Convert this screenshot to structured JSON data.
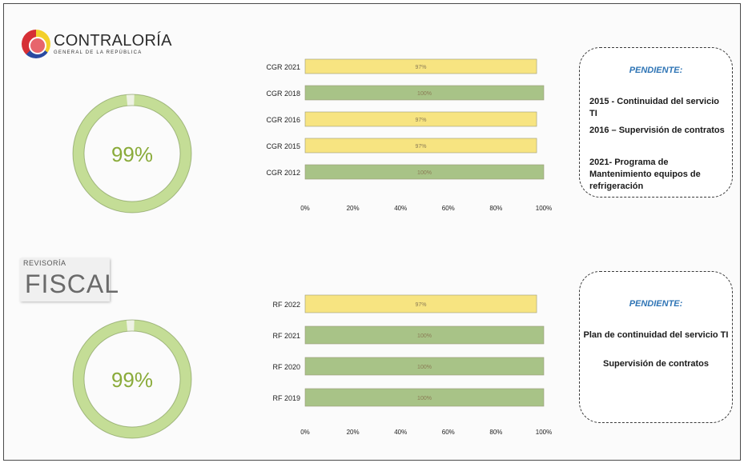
{
  "logos": {
    "contraloria_name": "CONTRALORÍA",
    "contraloria_sub": "GENERAL DE LA REPÚBLICA",
    "revisoria_small": "REVISORÍA",
    "revisoria_big": "FISCAL"
  },
  "colors": {
    "yellow": "#f7e481",
    "green": "#a8c387",
    "donut": "#c4dd96",
    "percent_text": "#8aab3a",
    "title_blue": "#2e74b5"
  },
  "donuts": [
    {
      "label": "99%",
      "value": 99
    },
    {
      "label": "99%",
      "value": 99
    }
  ],
  "chart_data": [
    {
      "type": "bar",
      "orientation": "horizontal",
      "categories": [
        "CGR 2021",
        "CGR 2018",
        "CGR 2016",
        "CGR 2015",
        "CGR 2012"
      ],
      "values": [
        97,
        100,
        97,
        97,
        100
      ],
      "data_labels": [
        "97%",
        "100%",
        "97%",
        "97%",
        "100%"
      ],
      "bar_colors": [
        "yellow",
        "green",
        "yellow",
        "yellow",
        "green"
      ],
      "xticks": [
        "0%",
        "20%",
        "40%",
        "60%",
        "80%",
        "100%"
      ],
      "xlim": [
        0,
        100
      ],
      "grid": false
    },
    {
      "type": "bar",
      "orientation": "horizontal",
      "categories": [
        "RF 2022",
        "RF 2021",
        "RF 2020",
        "RF 2019"
      ],
      "values": [
        97,
        100,
        100,
        100
      ],
      "data_labels": [
        "97%",
        "100%",
        "100%",
        "100%"
      ],
      "bar_colors": [
        "yellow",
        "green",
        "green",
        "green"
      ],
      "xticks": [
        "0%",
        "20%",
        "40%",
        "60%",
        "80%",
        "100%"
      ],
      "xlim": [
        0,
        100
      ],
      "grid": false
    }
  ],
  "pending": [
    {
      "title": "PENDIENTE:",
      "items": [
        "2015 - Continuidad del servicio TI",
        "2016 – Supervisión de contratos",
        "2021- Programa de Mantenimiento equipos de refrigeración"
      ]
    },
    {
      "title": "PENDIENTE:",
      "items": [
        "Plan de continuidad del servicio TI",
        "Supervisión de contratos"
      ]
    }
  ]
}
